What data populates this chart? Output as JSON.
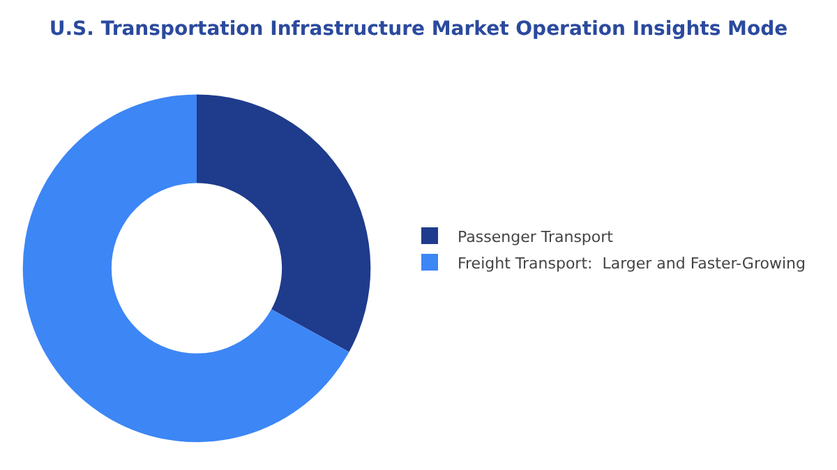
{
  "chart_data": {
    "type": "donut",
    "title": "U.S. Transportation Infrastructure Market Operation Insights Mode",
    "categories": [
      "Passenger Transport",
      "Freight Transport:  Larger and Faster-Growing"
    ],
    "values": [
      33,
      67
    ],
    "colors": [
      "#1f3b8c",
      "#3d86f5"
    ],
    "legend": "right"
  }
}
